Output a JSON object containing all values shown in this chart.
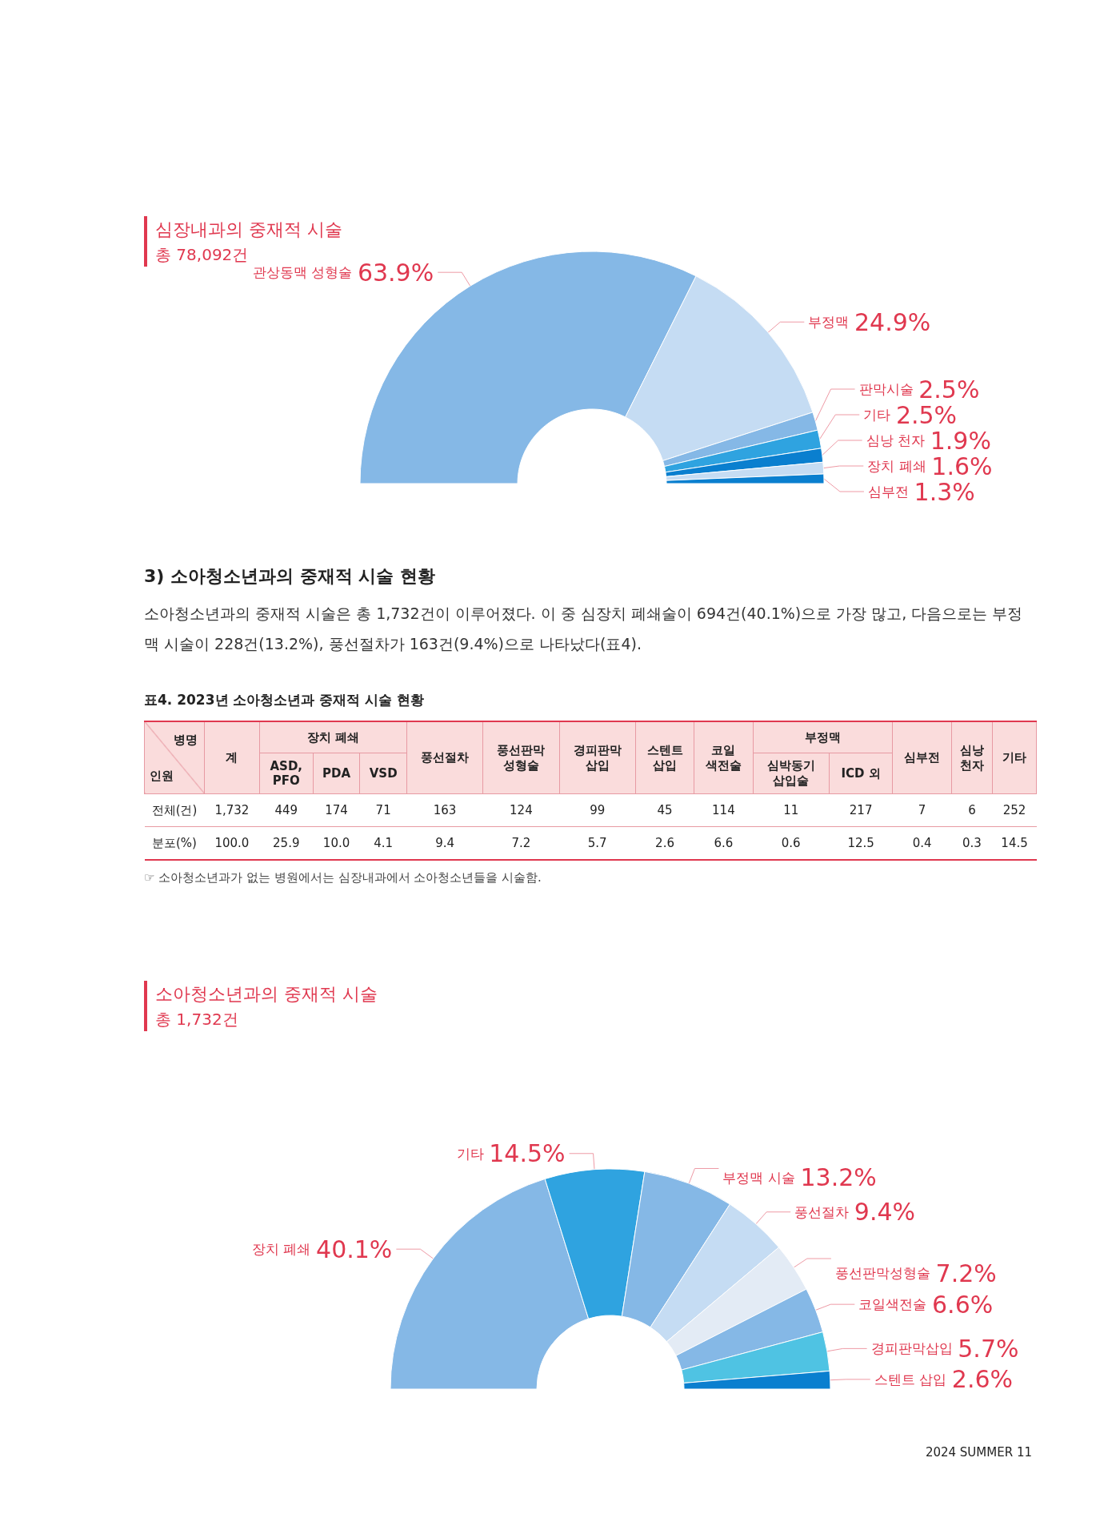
{
  "chart_data": [
    {
      "type": "donut",
      "title": "심장내과의 중재적 시술",
      "subtitle": "총 78,092건",
      "categories": [
        "관상동맥 성형술",
        "부정맥",
        "판막시술",
        "기타",
        "심낭 천자",
        "장치 폐쇄",
        "심부전"
      ],
      "values": [
        63.9,
        24.9,
        2.5,
        2.5,
        1.9,
        1.6,
        1.3
      ],
      "value_labels": [
        "63.9%",
        "24.9%",
        "2.5%",
        "2.5%",
        "1.9%",
        "1.6%",
        "1.3%"
      ],
      "colors": [
        "#85b8e6",
        "#c5dcf3",
        "#85b8e6",
        "#2fa3e0",
        "#0a7fcf",
        "#c5dcf3",
        "#0a7fcf"
      ],
      "legend": false
    },
    {
      "type": "other",
      "title": "3) 소아청소년과의 중재적 시술 현황",
      "subtitle": "소아청소년과의 중재적 시술은 총 1,732건이 이루어졌다. 이 중 심장치 폐쇄술이 694건(40.1%)으로 가장 많고, 다음으로는 부정맥 시술이 228건(13.2%), 풍선절차가 163건(9.4%)으로 나타났다(표4).",
      "annotations": [
        "표4. 2023년 소아청소년과 중재적 시술 현황",
        "병명",
        "인원",
        "장치 폐쇄",
        "부정맥",
        "☞ 소아청소년과가 없는 병원에서는 심장내과에서 소아청소년들을 시술함."
      ],
      "categories": [
        "계",
        "ASD,\nPFO",
        "PDA",
        "VSD",
        "풍선절차",
        "풍선판막\n성형술",
        "경피판막\n삽입",
        "스텐트\n삽입",
        "코일\n색전술",
        "심박동기\n삽입술",
        "ICD 외",
        "심부전",
        "심낭\n천자",
        "기타"
      ],
      "y_categories": [
        "전체(건)",
        "분포(%)"
      ],
      "cell_labels": [
        [
          "1,732",
          "449",
          "174",
          "71",
          "163",
          "124",
          "99",
          "45",
          "114",
          "11",
          "217",
          "7",
          "6",
          "252"
        ],
        [
          "100.0",
          "25.9",
          "10.0",
          "4.1",
          "9.4",
          "7.2",
          "5.7",
          "2.6",
          "6.6",
          "0.6",
          "12.5",
          "0.4",
          "0.3",
          "14.5"
        ]
      ]
    },
    {
      "type": "donut",
      "title": "소아청소년과의 중재적 시술",
      "subtitle": "총 1,732건",
      "categories": [
        "장치 폐쇄",
        "기타",
        "부정맥 시술",
        "풍선절차",
        "풍선판막성형술",
        "코일색전술",
        "경피판막삽입",
        "스텐트 삽입"
      ],
      "values": [
        40.1,
        14.5,
        13.2,
        9.4,
        7.2,
        6.6,
        5.7,
        2.6
      ],
      "value_labels": [
        "40.1%",
        "14.5%",
        "13.2%",
        "9.4%",
        "7.2%",
        "6.6%",
        "5.7%",
        "2.6%"
      ],
      "colors": [
        "#85b8e6",
        "#2fa3e0",
        "#85b8e6",
        "#c5dcf3",
        "#e3ebf5",
        "#85b8e6",
        "#4fc3e3",
        "#0a7fcf"
      ],
      "legend": false,
      "annotations": [
        "2024 SUMMER 11"
      ]
    }
  ]
}
